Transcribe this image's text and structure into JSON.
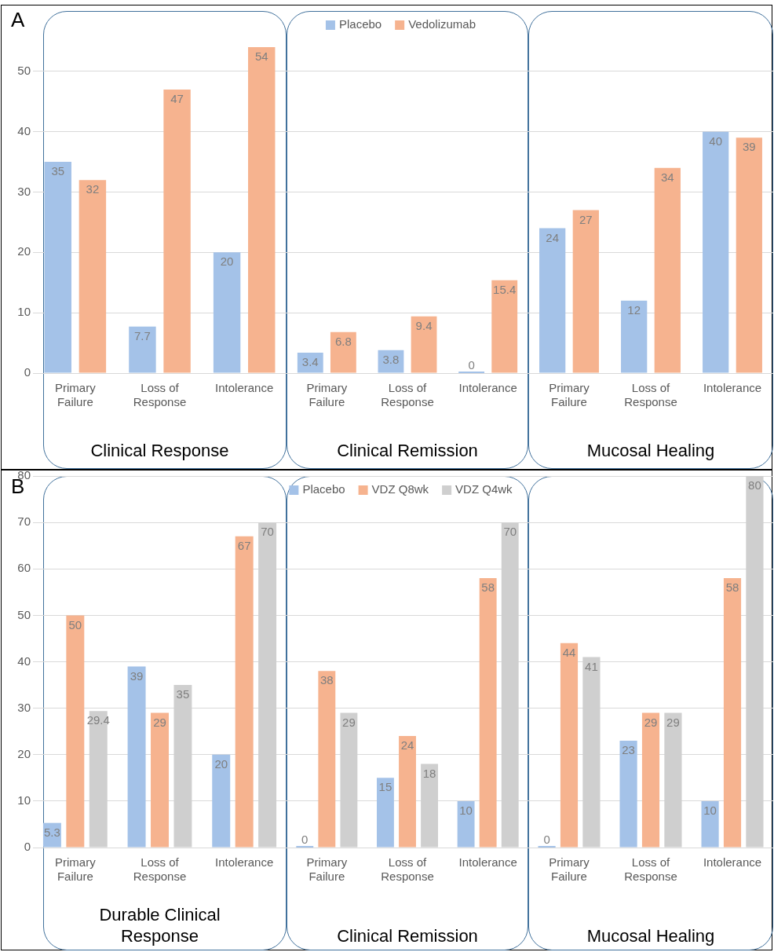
{
  "chart_data": [
    {
      "type": "bar",
      "xlabel": "Clinical Response",
      "categories": [
        "Primary Failure",
        "Loss of Response",
        "Intolerance"
      ],
      "series": [
        {
          "color": "#a4c2e8",
          "values": [
            35,
            7.7,
            20
          ]
        },
        {
          "color": "#f6b38f",
          "values": [
            32,
            47,
            54
          ]
        }
      ],
      "ylim": [
        0,
        60
      ],
      "yticks": [
        0,
        10,
        20,
        30,
        40,
        50
      ],
      "grid": "y",
      "data_labels": true,
      "annotations": [
        "A"
      ]
    },
    {
      "type": "bar",
      "xlabel": "Clinical Remission",
      "categories": [
        "Primary Failure",
        "Loss of Response",
        "Intolerance"
      ],
      "series": [
        {
          "name": "Placebo",
          "color": "#a4c2e8",
          "values": [
            3.4,
            3.8,
            0
          ]
        },
        {
          "name": "Vedolizumab",
          "color": "#f6b38f",
          "values": [
            6.8,
            9.4,
            15.4
          ]
        }
      ],
      "ylim": [
        0,
        60
      ],
      "yticks": [
        0,
        10,
        20,
        30,
        40,
        50
      ],
      "grid": "y",
      "data_labels": true,
      "legend": "top",
      "tick_labels": "x"
    },
    {
      "type": "bar",
      "xlabel": "Mucosal Healing",
      "categories": [
        "Primary Failure",
        "Loss of Response",
        "Intolerance"
      ],
      "series": [
        {
          "color": "#a4c2e8",
          "values": [
            24,
            12,
            40
          ]
        },
        {
          "color": "#f6b38f",
          "values": [
            27,
            34,
            39
          ]
        }
      ],
      "ylim": [
        0,
        60
      ],
      "yticks": [
        0,
        10,
        20,
        30,
        40,
        50
      ],
      "grid": "y",
      "data_labels": true,
      "tick_labels": "x"
    },
    {
      "type": "bar",
      "xlabel": "Durable Clinical Response",
      "categories": [
        "Primary Failure",
        "Loss of Response",
        "Intolerance"
      ],
      "series": [
        {
          "color": "#a4c2e8",
          "values": [
            5.3,
            39,
            20
          ]
        },
        {
          "color": "#f6b38f",
          "values": [
            50,
            29,
            67
          ]
        },
        {
          "color": "#cfcfcf",
          "values": [
            29.4,
            35,
            70
          ]
        }
      ],
      "ylim": [
        0,
        80
      ],
      "yticks": [
        0,
        10,
        20,
        30,
        40,
        50,
        60,
        70,
        80
      ],
      "grid": "y",
      "data_labels": true,
      "annotations": [
        "B"
      ]
    },
    {
      "type": "bar",
      "xlabel": "Clinical Remission",
      "categories": [
        "Primary Failure",
        "Loss of Response",
        "Intolerance"
      ],
      "series": [
        {
          "name": "Placebo",
          "color": "#a4c2e8",
          "values": [
            0,
            15,
            10
          ]
        },
        {
          "name": "VDZ Q8wk",
          "color": "#f6b38f",
          "values": [
            38,
            24,
            58
          ]
        },
        {
          "name": "VDZ Q4wk",
          "color": "#cfcfcf",
          "values": [
            29,
            18,
            70
          ]
        }
      ],
      "ylim": [
        0,
        80
      ],
      "yticks": [
        0,
        10,
        20,
        30,
        40,
        50,
        60,
        70,
        80
      ],
      "grid": "y",
      "data_labels": true,
      "legend": "top",
      "tick_labels": "x"
    },
    {
      "type": "bar",
      "xlabel": "Mucosal Healing",
      "categories": [
        "Primary Failure",
        "Loss of Response",
        "Intolerance"
      ],
      "series": [
        {
          "color": "#a4c2e8",
          "values": [
            0,
            23,
            10
          ]
        },
        {
          "color": "#f6b38f",
          "values": [
            44,
            29,
            58
          ]
        },
        {
          "color": "#cfcfcf",
          "values": [
            41,
            29,
            80
          ]
        }
      ],
      "ylim": [
        0,
        80
      ],
      "yticks": [
        0,
        10,
        20,
        30,
        40,
        50,
        60,
        70,
        80
      ],
      "grid": "y",
      "data_labels": true,
      "tick_labels": "x"
    }
  ]
}
